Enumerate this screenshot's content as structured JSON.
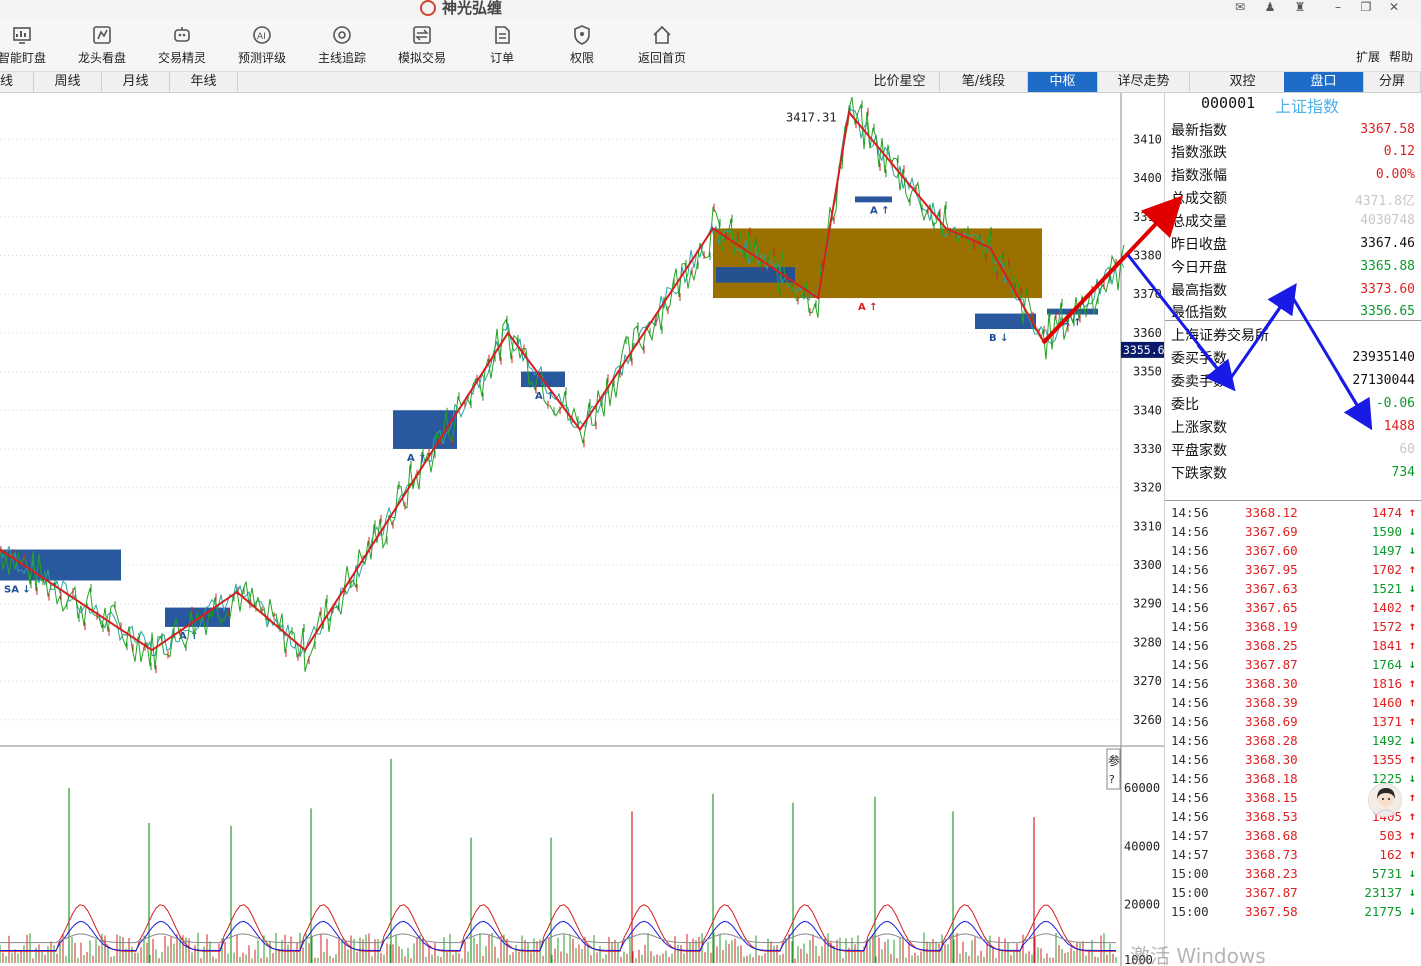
{
  "app": {
    "title": "神光弘缠"
  },
  "window": {
    "min": "–",
    "max": "❐",
    "close": "✕"
  },
  "toolbar": {
    "items": [
      {
        "label": "智能盯盘",
        "icon": "monitor-chart-icon"
      },
      {
        "label": "龙头看盘",
        "icon": "dragon-chart-icon"
      },
      {
        "label": "交易精灵",
        "icon": "robot-icon"
      },
      {
        "label": "预测评级",
        "icon": "ai-icon"
      },
      {
        "label": "主线追踪",
        "icon": "target-icon"
      },
      {
        "label": "模拟交易",
        "icon": "exchange-icon"
      },
      {
        "label": "订单",
        "icon": "document-icon"
      },
      {
        "label": "权限",
        "icon": "shield-icon"
      },
      {
        "label": "返回首页",
        "icon": "home-icon"
      }
    ],
    "expand": "扩展",
    "help": "帮助"
  },
  "period_tabs": [
    "线",
    "周线",
    "月线",
    "年线"
  ],
  "view_tabs": [
    {
      "label": "比价星空",
      "active": false
    },
    {
      "label": "笔/线段",
      "active": false
    },
    {
      "label": "中枢",
      "active": true
    },
    {
      "label": "详尽走势",
      "active": false
    },
    {
      "label": "双控",
      "active": false
    },
    {
      "label": "盘口",
      "active": true
    },
    {
      "label": "分屏",
      "active": false
    }
  ],
  "chart_data": {
    "type": "line",
    "ylim": [
      3254,
      3422
    ],
    "price_ticks": [
      3410,
      3400,
      3390,
      3380,
      3370,
      3360,
      3350,
      3340,
      3330,
      3320,
      3310,
      3300,
      3290,
      3280,
      3270,
      3260
    ],
    "peak_label": "3417.31",
    "current_price_label": "3355.6",
    "stroke_points": [
      [
        0,
        3304
      ],
      [
        152,
        3278
      ],
      [
        237,
        3293
      ],
      [
        305,
        3278
      ],
      [
        508,
        3360
      ],
      [
        580,
        3335
      ],
      [
        713,
        3387
      ],
      [
        818,
        3369
      ],
      [
        849,
        3417
      ],
      [
        946,
        3387
      ],
      [
        990,
        3382
      ],
      [
        1043,
        3358
      ],
      [
        1125,
        3378
      ]
    ],
    "zhongshu_boxes": [
      {
        "x0": 0,
        "x1": 121,
        "top": 3304,
        "bottom": 3296,
        "color": "blue",
        "mark": "SA"
      },
      {
        "x0": 165,
        "x1": 230,
        "top": 3289,
        "bottom": 3284,
        "color": "blue",
        "mark": "A"
      },
      {
        "x0": 393,
        "x1": 457,
        "top": 3340,
        "bottom": 3330,
        "color": "blue",
        "mark": "A"
      },
      {
        "x0": 521,
        "x1": 565,
        "top": 3350,
        "bottom": 3346,
        "color": "blue",
        "mark": "A"
      },
      {
        "x0": 713,
        "x1": 1042,
        "top": 3387,
        "bottom": 3369,
        "color": "brown",
        "mark": "A"
      },
      {
        "x0": 716,
        "x1": 795,
        "top": 3377,
        "bottom": 3373,
        "color": "blue",
        "mark": ""
      },
      {
        "x0": 975,
        "x1": 1036,
        "top": 3365,
        "bottom": 3361,
        "color": "blue",
        "mark": "B"
      },
      {
        "x0": 856,
        "x1": 891,
        "top": 3395,
        "bottom": 3394,
        "color": "blue",
        "mark": "A"
      },
      {
        "x0": 1048,
        "x1": 1097,
        "top": 3366,
        "bottom": 3365,
        "color": "blue",
        "mark": "A"
      }
    ],
    "volume_ticks": [
      60000,
      40000,
      20000,
      1000
    ],
    "volume_ylim": [
      0,
      72000
    ],
    "volume_spikes": [
      [
        69,
        60000
      ],
      [
        149,
        48000
      ],
      [
        231,
        47000
      ],
      [
        311,
        53000
      ],
      [
        391,
        70000
      ],
      [
        471,
        43000
      ],
      [
        551,
        43000
      ],
      [
        632,
        52000
      ],
      [
        713,
        58000
      ],
      [
        793,
        55000
      ],
      [
        875,
        57000
      ],
      [
        953,
        52000
      ],
      [
        1034,
        50000
      ]
    ]
  },
  "side_label": "参?",
  "quote": {
    "code": "000001",
    "name": "上证指数",
    "rows": [
      {
        "label": "最新指数",
        "value": "3367.58",
        "color": "red"
      },
      {
        "label": "指数涨跌",
        "value": "0.12",
        "color": "red"
      },
      {
        "label": "指数涨幅",
        "value": "0.00%",
        "color": "red"
      },
      {
        "label": "总成交额",
        "value": "4371.8亿",
        "color": "gray"
      },
      {
        "label": "总成交量",
        "value": "4030748",
        "color": "gray"
      },
      {
        "label": "昨日收盘",
        "value": "3367.46",
        "color": "black"
      },
      {
        "label": "今日开盘",
        "value": "3365.88",
        "color": "green"
      },
      {
        "label": "最高指数",
        "value": "3373.60",
        "color": "red"
      },
      {
        "label": "最低指数",
        "value": "3356.65",
        "color": "green"
      }
    ],
    "exchange_label": "上海证券交易所",
    "rows2": [
      {
        "label": "委买手数",
        "value": "23935140",
        "color": "black"
      },
      {
        "label": "委卖手数",
        "value": "27130044",
        "color": "black"
      },
      {
        "label": "委比",
        "value": "-0.06",
        "color": "green"
      },
      {
        "label": "上涨家数",
        "value": "1488",
        "color": "red"
      },
      {
        "label": "平盘家数",
        "value": "60",
        "color": "gray"
      },
      {
        "label": "下跌家数",
        "value": "734",
        "color": "green"
      }
    ]
  },
  "ticks": [
    {
      "time": "14:56",
      "price": "3368.12",
      "vol": "1474",
      "dir": "up"
    },
    {
      "time": "14:56",
      "price": "3367.69",
      "vol": "1590",
      "dir": "down"
    },
    {
      "time": "14:56",
      "price": "3367.60",
      "vol": "1497",
      "dir": "down"
    },
    {
      "time": "14:56",
      "price": "3367.95",
      "vol": "1702",
      "dir": "up"
    },
    {
      "time": "14:56",
      "price": "3367.63",
      "vol": "1521",
      "dir": "down"
    },
    {
      "time": "14:56",
      "price": "3367.65",
      "vol": "1402",
      "dir": "up"
    },
    {
      "time": "14:56",
      "price": "3368.19",
      "vol": "1572",
      "dir": "up"
    },
    {
      "time": "14:56",
      "price": "3368.25",
      "vol": "1841",
      "dir": "up"
    },
    {
      "time": "14:56",
      "price": "3367.87",
      "vol": "1764",
      "dir": "down"
    },
    {
      "time": "14:56",
      "price": "3368.30",
      "vol": "1816",
      "dir": "up"
    },
    {
      "time": "14:56",
      "price": "3368.39",
      "vol": "1460",
      "dir": "up"
    },
    {
      "time": "14:56",
      "price": "3368.69",
      "vol": "1371",
      "dir": "up"
    },
    {
      "time": "14:56",
      "price": "3368.28",
      "vol": "1492",
      "dir": "down"
    },
    {
      "time": "14:56",
      "price": "3368.30",
      "vol": "1355",
      "dir": "up"
    },
    {
      "time": "14:56",
      "price": "3368.18",
      "vol": "1225",
      "dir": "down"
    },
    {
      "time": "14:56",
      "price": "3368.15",
      "vol": "",
      "dir": "up"
    },
    {
      "time": "14:56",
      "price": "3368.53",
      "vol": "1405",
      "dir": "up"
    },
    {
      "time": "14:57",
      "price": "3368.68",
      "vol": "503",
      "dir": "up"
    },
    {
      "time": "14:57",
      "price": "3368.73",
      "vol": "162",
      "dir": "up"
    },
    {
      "time": "15:00",
      "price": "3368.23",
      "vol": "5731",
      "dir": "down"
    },
    {
      "time": "15:00",
      "price": "3367.87",
      "vol": "23137",
      "dir": "down"
    },
    {
      "time": "15:00",
      "price": "3367.58",
      "vol": "21775",
      "dir": "down"
    }
  ],
  "watermark": "激活 Windows",
  "colors": {
    "red": "#e02020",
    "green": "#0a9a2a",
    "blue_box": "#1f4f99",
    "brown_box": "#9a7000",
    "accent": "#1e6cc8",
    "arrow_blue": "#1a1ae6"
  }
}
